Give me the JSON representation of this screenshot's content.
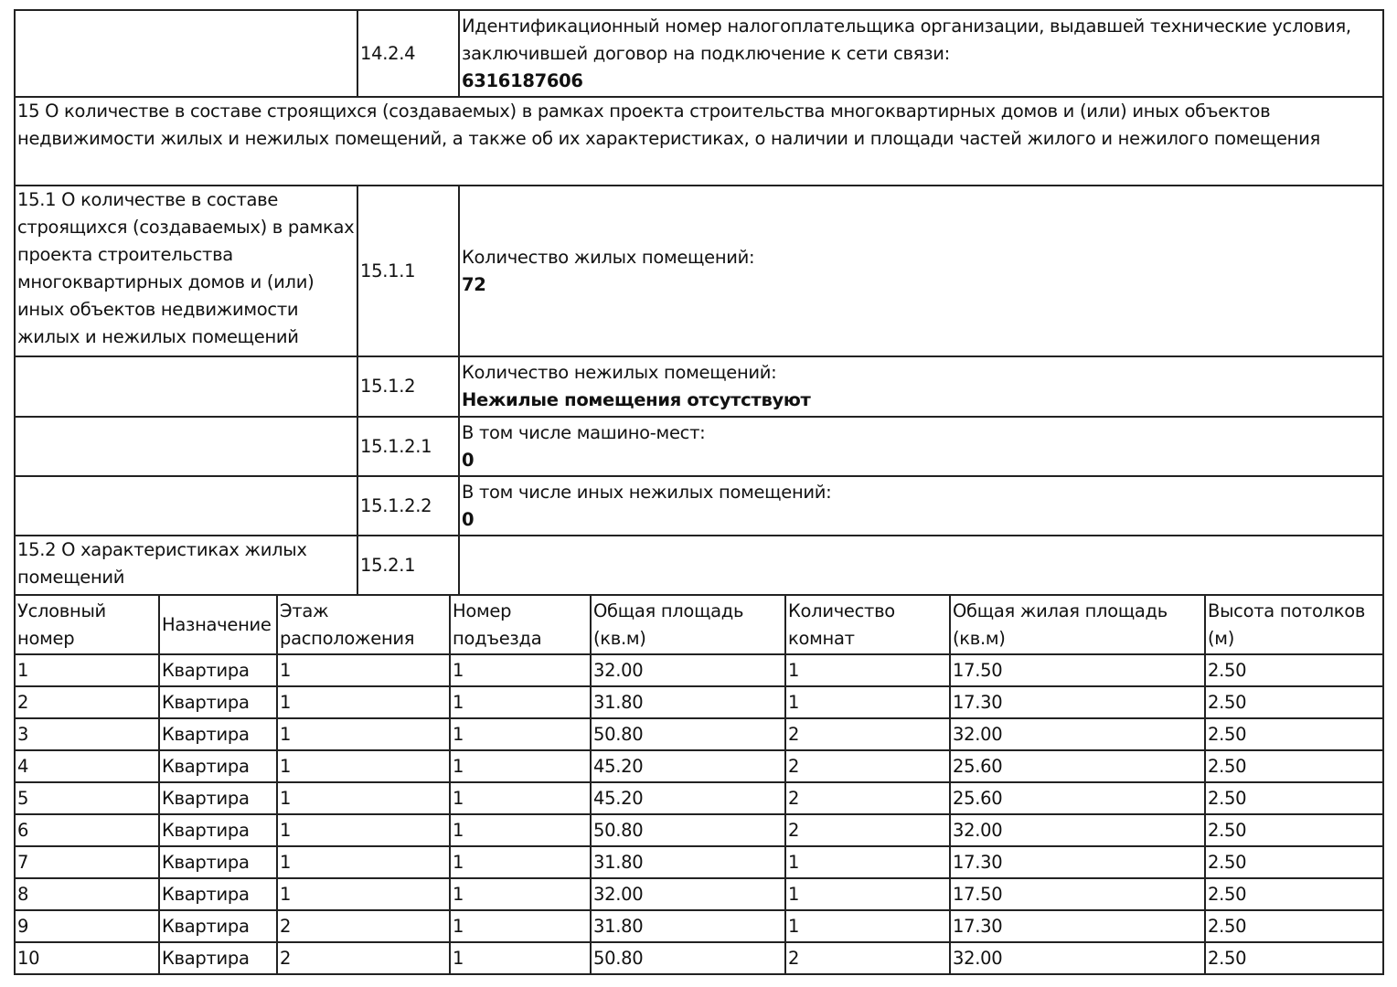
{
  "sections": {
    "s1424": {
      "code": "14.2.4",
      "label": "Идентификационный номер налогоплательщика организации, выдавшей технические условия, заключившей договор на подключение к сети связи:",
      "value": "6316187606"
    },
    "s15": {
      "title": "15 О количестве в составе строящихся (создаваемых) в рамках проекта строительства многоквартирных домов и (или) иных объектов недвижимости жилых и нежилых помещений, а также об их характеристиках, о наличии и площади частей жилого и нежилого помещения"
    },
    "s151": {
      "title": "15.1 О количестве в составе строящихся (создаваемых) в рамках проекта строительства многоквартирных домов и (или) иных объектов недвижимости жилых и нежилых помещений"
    },
    "s1511": {
      "code": "15.1.1",
      "label": "Количество жилых помещений:",
      "value": "72"
    },
    "s1512": {
      "code": "15.1.2",
      "label": "Количество нежилых помещений:",
      "value": "Нежилые помещения отсутствуют"
    },
    "s15121": {
      "code": "15.1.2.1",
      "label": "В том числе машино-мест:",
      "value": "0"
    },
    "s15122": {
      "code": "15.1.2.2",
      "label": "В том числе иных нежилых помещений:",
      "value": "0"
    },
    "s152": {
      "title": "15.2 О характеристиках жилых помещений",
      "code": "15.2.1"
    }
  },
  "table": {
    "headers": [
      "Условный номер",
      "Назначение",
      "Этаж расположения",
      "Номер подъезда",
      "Общая площадь (кв.м)",
      "Количество комнат",
      "Общая жилая площадь (кв.м)",
      "Высота потолков (м)"
    ],
    "rows": [
      [
        "1",
        "Квартира",
        "1",
        "1",
        "32.00",
        "1",
        "17.50",
        "2.50"
      ],
      [
        "2",
        "Квартира",
        "1",
        "1",
        "31.80",
        "1",
        "17.30",
        "2.50"
      ],
      [
        "3",
        "Квартира",
        "1",
        "1",
        "50.80",
        "2",
        "32.00",
        "2.50"
      ],
      [
        "4",
        "Квартира",
        "1",
        "1",
        "45.20",
        "2",
        "25.60",
        "2.50"
      ],
      [
        "5",
        "Квартира",
        "1",
        "1",
        "45.20",
        "2",
        "25.60",
        "2.50"
      ],
      [
        "6",
        "Квартира",
        "1",
        "1",
        "50.80",
        "2",
        "32.00",
        "2.50"
      ],
      [
        "7",
        "Квартира",
        "1",
        "1",
        "31.80",
        "1",
        "17.30",
        "2.50"
      ],
      [
        "8",
        "Квартира",
        "1",
        "1",
        "32.00",
        "1",
        "17.50",
        "2.50"
      ],
      [
        "9",
        "Квартира",
        "2",
        "1",
        "31.80",
        "1",
        "17.30",
        "2.50"
      ],
      [
        "10",
        "Квартира",
        "2",
        "1",
        "50.80",
        "2",
        "32.00",
        "2.50"
      ]
    ]
  }
}
